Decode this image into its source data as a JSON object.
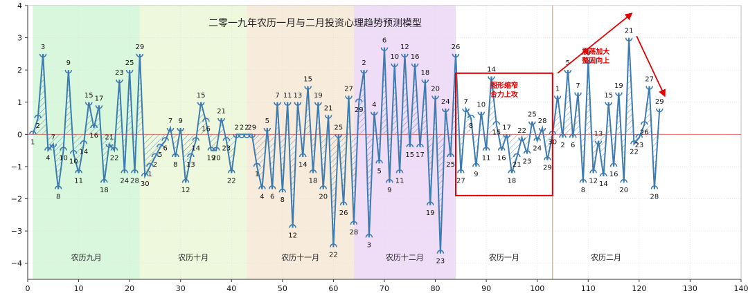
{
  "chart_data": {
    "type": "line",
    "title": "二零一九年农历一月与二月投资心理趋势预测模型",
    "xlim": [
      0,
      140
    ],
    "ylim": [
      -4.5,
      4
    ],
    "x_ticks": [
      0,
      10,
      20,
      30,
      40,
      50,
      60,
      70,
      80,
      90,
      100,
      110,
      120,
      130,
      140
    ],
    "y_ticks": [
      -4,
      -3,
      -2,
      -1,
      0,
      1,
      2,
      3,
      4
    ],
    "grid": true,
    "bands": [
      {
        "label": "农历九月",
        "x_start": 1,
        "x_end": 22,
        "color": "#d9f7dd"
      },
      {
        "label": "农历十月",
        "x_start": 22,
        "x_end": 43,
        "color": "#eef8dd"
      },
      {
        "label": "农历十一月",
        "x_start": 43,
        "x_end": 64,
        "color": "#f7ebdc"
      },
      {
        "label": "农历十二月",
        "x_start": 64,
        "x_end": 84,
        "color": "#efdcf6"
      },
      {
        "label": "农历一月",
        "x_start": 84,
        "x_end": 103,
        "color": "#ffffff"
      },
      {
        "label": "农历二月",
        "x_start": 103,
        "x_end": 124,
        "color": "#ffffff"
      }
    ],
    "series": [
      {
        "points": [
          {
            "x": 1,
            "y": 0,
            "label": "1"
          },
          {
            "x": 2,
            "y": 0.5,
            "label": "2"
          },
          {
            "x": 3,
            "y": 2.5,
            "label": "3"
          },
          {
            "x": 4,
            "y": -0.5,
            "label": "4"
          },
          {
            "x": 5,
            "y": -0.3,
            "label": "7"
          },
          {
            "x": 6,
            "y": -1.7,
            "label": "8"
          },
          {
            "x": 7,
            "y": -0.5,
            "label": "10"
          },
          {
            "x": 8,
            "y": 2.0,
            "label": "9"
          },
          {
            "x": 9,
            "y": -0.6,
            "label": "10"
          },
          {
            "x": 10,
            "y": -1.2,
            "label": "11"
          },
          {
            "x": 11,
            "y": -0.3,
            "label": "14"
          },
          {
            "x": 12,
            "y": 1.0,
            "label": "15"
          },
          {
            "x": 13,
            "y": 0.2,
            "label": "16"
          },
          {
            "x": 14,
            "y": 0.9,
            "label": "17"
          },
          {
            "x": 15,
            "y": -1.5,
            "label": "18"
          },
          {
            "x": 16,
            "y": -0.3,
            "label": "21"
          },
          {
            "x": 17,
            "y": -0.5,
            "label": "22"
          },
          {
            "x": 18,
            "y": 1.7,
            "label": "23"
          },
          {
            "x": 19,
            "y": -1.2,
            "label": "24"
          },
          {
            "x": 20,
            "y": 2.0,
            "label": "25"
          },
          {
            "x": 21,
            "y": -1.2,
            "label": "28"
          },
          {
            "x": 22,
            "y": 2.5,
            "label": "29"
          },
          {
            "x": 23,
            "y": -1.3,
            "label": "30"
          },
          {
            "x": 24,
            "y": -1.0,
            "label": "1"
          },
          {
            "x": 25,
            "y": -0.7,
            "label": "2"
          },
          {
            "x": 26,
            "y": -0.4,
            "label": "5"
          },
          {
            "x": 27,
            "y": -0.2,
            "label": "6"
          },
          {
            "x": 28,
            "y": 0.2,
            "label": "7"
          },
          {
            "x": 29,
            "y": -0.7,
            "label": "8"
          },
          {
            "x": 30,
            "y": 0.2,
            "label": "9"
          },
          {
            "x": 31,
            "y": -1.5,
            "label": "12"
          },
          {
            "x": 32,
            "y": -0.7,
            "label": "13"
          },
          {
            "x": 33,
            "y": -0.2,
            "label": "14"
          },
          {
            "x": 34,
            "y": 1.0,
            "label": "15"
          },
          {
            "x": 35,
            "y": 0.4,
            "label": "16"
          },
          {
            "x": 36,
            "y": -0.5,
            "label": "19"
          },
          {
            "x": 37,
            "y": -0.5,
            "label": "20"
          },
          {
            "x": 38,
            "y": 0.5,
            "label": "21"
          },
          {
            "x": 39,
            "y": -0.2,
            "label": "23"
          },
          {
            "x": 40,
            "y": -1.2,
            "label": "22"
          },
          {
            "x": 41,
            "y": 0,
            "label": "2"
          },
          {
            "x": 42,
            "y": 0,
            "label": "2"
          },
          {
            "x": 43,
            "y": 0,
            "label": "2"
          },
          {
            "x": 44,
            "y": 0,
            "label": "29"
          },
          {
            "x": 45,
            "y": -1.0,
            "label": "1"
          },
          {
            "x": 46,
            "y": -1.7,
            "label": "4"
          },
          {
            "x": 47,
            "y": 0.2,
            "label": "5"
          },
          {
            "x": 48,
            "y": -1.7,
            "label": "6"
          },
          {
            "x": 49,
            "y": 1.0,
            "label": "7"
          },
          {
            "x": 50,
            "y": -1.8,
            "label": "8"
          },
          {
            "x": 51,
            "y": 1.0,
            "label": "11"
          },
          {
            "x": 52,
            "y": -2.9,
            "label": "12"
          },
          {
            "x": 53,
            "y": 1.0,
            "label": "13"
          },
          {
            "x": 54,
            "y": -0.7,
            "label": "14"
          },
          {
            "x": 55,
            "y": 1.5,
            "label": "15"
          },
          {
            "x": 56,
            "y": -1.2,
            "label": "18"
          },
          {
            "x": 57,
            "y": 1.0,
            "label": "19"
          },
          {
            "x": 58,
            "y": -1.7,
            "label": "20"
          },
          {
            "x": 59,
            "y": 0.6,
            "label": "21"
          },
          {
            "x": 60,
            "y": -3.5,
            "label": "22"
          },
          {
            "x": 61,
            "y": 0,
            "label": "25"
          },
          {
            "x": 62,
            "y": -2.2,
            "label": "26"
          },
          {
            "x": 63,
            "y": 1.2,
            "label": "27"
          },
          {
            "x": 64,
            "y": -2.8,
            "label": "28"
          },
          {
            "x": 65,
            "y": 1.0,
            "label": "29"
          },
          {
            "x": 66,
            "y": 2.0,
            "label": "2"
          },
          {
            "x": 67,
            "y": -3.2,
            "label": "3"
          },
          {
            "x": 68,
            "y": 0.7,
            "label": "4"
          },
          {
            "x": 69,
            "y": -0.9,
            "label": "5"
          },
          {
            "x": 70,
            "y": 2.7,
            "label": "6"
          },
          {
            "x": 71,
            "y": -1.5,
            "label": "9"
          },
          {
            "x": 72,
            "y": 2.2,
            "label": "10"
          },
          {
            "x": 73,
            "y": -1.2,
            "label": "11"
          },
          {
            "x": 74,
            "y": 2.5,
            "label": "12"
          },
          {
            "x": 75,
            "y": -0.4,
            "label": "15"
          },
          {
            "x": 76,
            "y": 2.2,
            "label": "16"
          },
          {
            "x": 77,
            "y": -0.4,
            "label": "17"
          },
          {
            "x": 78,
            "y": 1.7,
            "label": "18"
          },
          {
            "x": 79,
            "y": -2.2,
            "label": "19"
          },
          {
            "x": 80,
            "y": 1.2,
            "label": "20"
          },
          {
            "x": 81,
            "y": -3.7,
            "label": "23"
          },
          {
            "x": 82,
            "y": 0.8,
            "label": "24"
          },
          {
            "x": 83,
            "y": -0.7,
            "label": "25"
          },
          {
            "x": 84,
            "y": 2.5,
            "label": "26"
          },
          {
            "x": 85,
            "y": -1.2,
            "label": "27"
          },
          {
            "x": 86,
            "y": 0.8,
            "label": "7"
          },
          {
            "x": 87,
            "y": 0.5,
            "label": "8"
          },
          {
            "x": 88,
            "y": -1.0,
            "label": "9"
          },
          {
            "x": 89,
            "y": 0.7,
            "label": "10"
          },
          {
            "x": 90,
            "y": -0.5,
            "label": "11"
          },
          {
            "x": 91,
            "y": 1.8,
            "label": "14"
          },
          {
            "x": 92,
            "y": 0.3,
            "label": "15"
          },
          {
            "x": 93,
            "y": -0.5,
            "label": "16"
          },
          {
            "x": 94,
            "y": 0,
            "label": "17"
          },
          {
            "x": 95,
            "y": -1.2,
            "label": "18"
          },
          {
            "x": 96,
            "y": -0.7,
            "label": "21"
          },
          {
            "x": 97,
            "y": -0.1,
            "label": "22"
          },
          {
            "x": 98,
            "y": -0.6,
            "label": "23"
          },
          {
            "x": 99,
            "y": 0.4,
            "label": "25"
          },
          {
            "x": 100,
            "y": -0.2,
            "label": "24"
          },
          {
            "x": 101,
            "y": 0.2,
            "label": "28"
          },
          {
            "x": 102,
            "y": -0.8,
            "label": "29"
          },
          {
            "x": 103,
            "y": 0,
            "label": "30"
          },
          {
            "x": 104,
            "y": 1.2,
            "label": "1"
          },
          {
            "x": 105,
            "y": -0.1,
            "label": "2"
          },
          {
            "x": 106,
            "y": 2.0,
            "label": "5"
          },
          {
            "x": 107,
            "y": -0.1,
            "label": "6"
          },
          {
            "x": 108,
            "y": 1.3,
            "label": "7"
          },
          {
            "x": 109,
            "y": -1.5,
            "label": "8"
          },
          {
            "x": 110,
            "y": 2.3,
            "label": "9"
          },
          {
            "x": 111,
            "y": -1.2,
            "label": "12"
          },
          {
            "x": 112,
            "y": -0.2,
            "label": "13"
          },
          {
            "x": 113,
            "y": -1.3,
            "label": "14"
          },
          {
            "x": 114,
            "y": 1.0,
            "label": "15"
          },
          {
            "x": 115,
            "y": -1.0,
            "label": "16"
          },
          {
            "x": 116,
            "y": 1.3,
            "label": "19"
          },
          {
            "x": 117,
            "y": -1.5,
            "label": "20"
          },
          {
            "x": 118,
            "y": 3.0,
            "label": "21"
          },
          {
            "x": 119,
            "y": -0.3,
            "label": "22"
          },
          {
            "x": 120,
            "y": -0.1,
            "label": "23"
          },
          {
            "x": 121,
            "y": 0.3,
            "label": "26"
          },
          {
            "x": 122,
            "y": 1.5,
            "label": "27"
          },
          {
            "x": 123,
            "y": -1.7,
            "label": "28"
          },
          {
            "x": 124,
            "y": 0.8,
            "label": "29"
          }
        ]
      }
    ],
    "annotations": [
      {
        "text_lines": [
          "图形缩窄",
          "合力上攻"
        ],
        "box": {
          "x0": 84,
          "x1": 103,
          "y0": -1.9,
          "y1": 1.9
        }
      },
      {
        "text_lines": [
          "震荡加大",
          "整固向上"
        ]
      }
    ],
    "colors": {
      "line": "#3d7bb0",
      "hatch": "#3d7bb0",
      "zero_line": "#e05555",
      "annotation": "#e00000",
      "divider": "#d4a24a",
      "grid": "#dddddd"
    }
  }
}
